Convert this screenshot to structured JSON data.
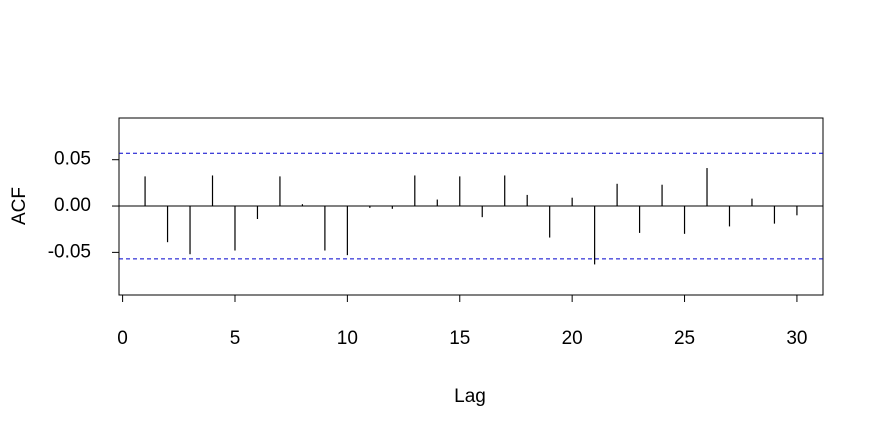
{
  "chart_data": {
    "type": "stem",
    "x_label": "Lag",
    "y_label": "ACF",
    "x": [
      1,
      2,
      3,
      4,
      5,
      6,
      7,
      8,
      9,
      10,
      11,
      12,
      13,
      14,
      15,
      16,
      17,
      18,
      19,
      20,
      21,
      22,
      23,
      24,
      25,
      26,
      27,
      28,
      29,
      30
    ],
    "values": [
      0.032,
      -0.039,
      -0.052,
      0.033,
      -0.048,
      -0.014,
      0.032,
      0.002,
      -0.048,
      -0.053,
      -0.002,
      -0.003,
      0.033,
      0.007,
      0.032,
      -0.012,
      0.033,
      0.012,
      -0.034,
      0.009,
      -0.063,
      0.024,
      -0.029,
      0.023,
      -0.03,
      0.041,
      -0.022,
      0.008,
      -0.019,
      -0.01
    ],
    "color": "#000000",
    "conf_limits": [
      0.057,
      -0.057
    ],
    "conf_color": "#0000cc",
    "xlim": [
      -0.16,
      31.16
    ],
    "ylim": [
      -0.096,
      0.095
    ],
    "xticks": [
      0,
      5,
      10,
      15,
      20,
      25,
      30
    ],
    "yticks": [
      {
        "value": -0.05,
        "label": "-0.05"
      },
      {
        "value": 0,
        "label": "0.00"
      },
      {
        "value": 0.05,
        "label": "0.05"
      }
    ]
  }
}
